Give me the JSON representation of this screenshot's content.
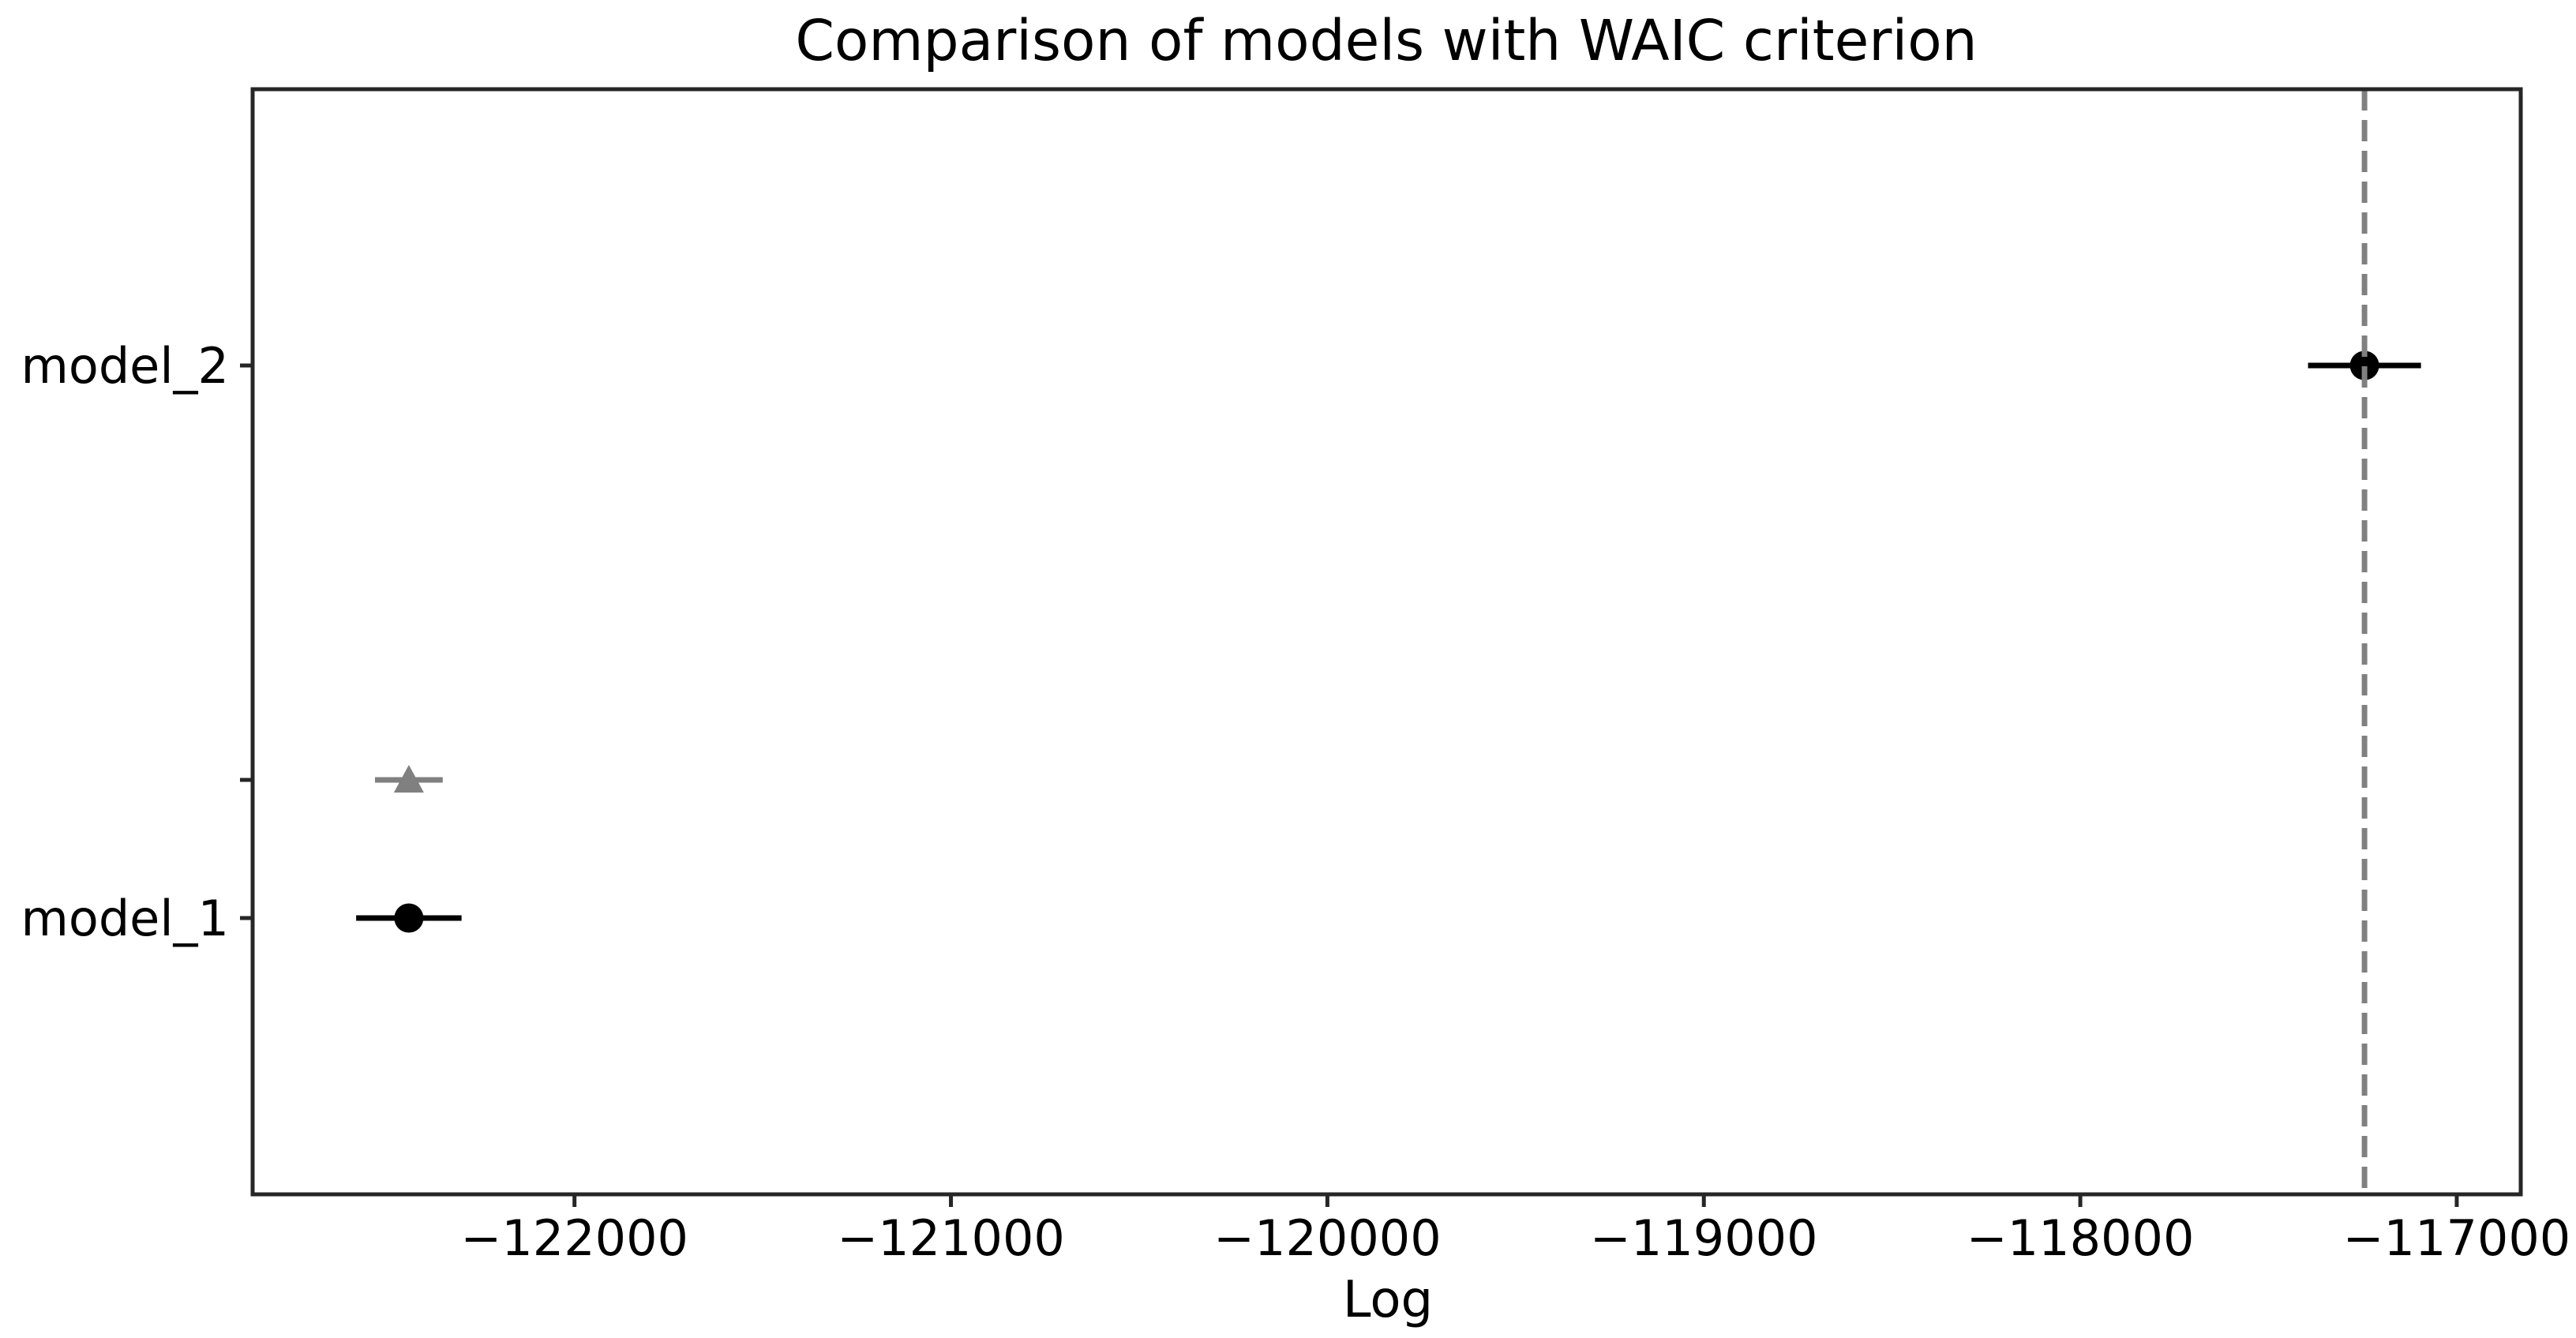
{
  "figure": {
    "background": "#ffffff"
  },
  "chart_data": {
    "type": "scatter",
    "title": "Comparison of models with WAIC criterion",
    "xlabel": "Log",
    "ylabel": "",
    "grid": false,
    "legend": "none",
    "xlim": [
      -122855,
      -116830
    ],
    "ylim": [
      -1.5,
      0.5
    ],
    "x_ticks": [
      {
        "value": -122000,
        "label": "−122000"
      },
      {
        "value": -121000,
        "label": "−121000"
      },
      {
        "value": -120000,
        "label": "−120000"
      },
      {
        "value": -119000,
        "label": "−119000"
      },
      {
        "value": -118000,
        "label": "−118000"
      },
      {
        "value": -117000,
        "label": "−117000"
      }
    ],
    "y_ticks": [
      {
        "value": 0,
        "label": "model_2"
      },
      {
        "value": -0.75,
        "label": ""
      },
      {
        "value": -1,
        "label": "model_1"
      }
    ],
    "series": [
      {
        "name": "elpd-waic",
        "marker": "circle",
        "color": "#000000",
        "points": [
          {
            "model": "model_2",
            "x": -117245,
            "y": 0,
            "xerr": 150
          },
          {
            "model": "model_1",
            "x": -122440,
            "y": -1,
            "xerr": 140
          }
        ]
      },
      {
        "name": "elpd-diff",
        "marker": "triangle-up",
        "color": "#808080",
        "points": [
          {
            "model": "model_1",
            "x": -122440,
            "y": -0.75,
            "xerr": 90
          }
        ]
      }
    ],
    "vline": {
      "x": -117245,
      "style": "dashed",
      "color": "#808080"
    },
    "axis_color": "#262626"
  }
}
